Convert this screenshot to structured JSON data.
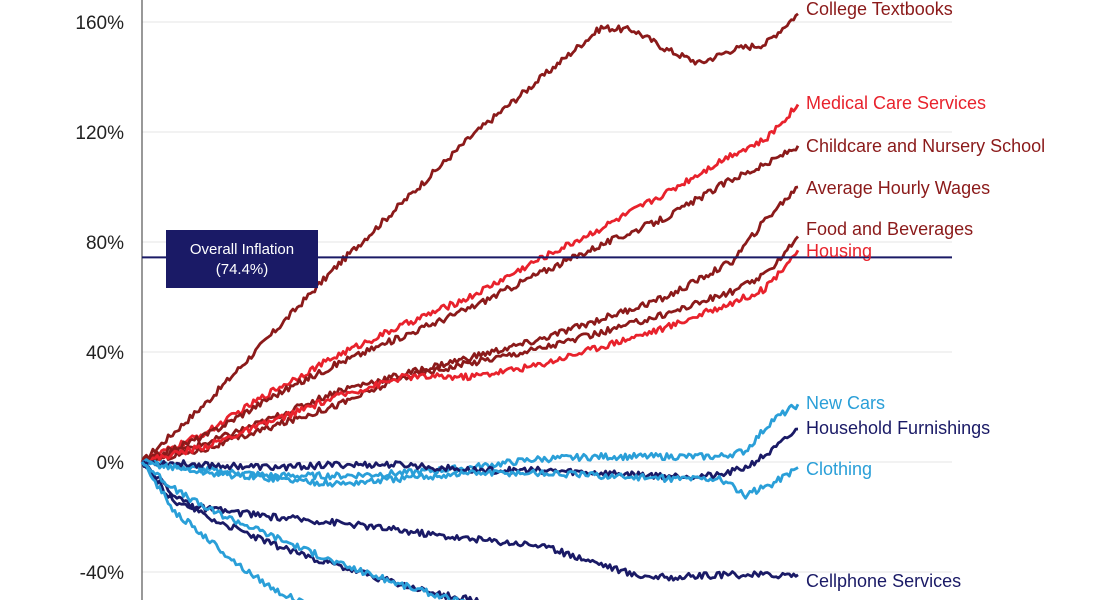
{
  "chart_data": {
    "type": "line",
    "ylim": [
      -50,
      170
    ],
    "yticks": [
      "160%",
      "120%",
      "80%",
      "40%",
      "0%",
      "-40%"
    ],
    "ytick_values": [
      160,
      120,
      80,
      40,
      0,
      -40
    ],
    "x_range": [
      0,
      100
    ],
    "grid": true,
    "annotation": {
      "line1": "Overall Inflation",
      "line2": "(74.4%)",
      "value": 74.4,
      "color": "#1a1a66"
    },
    "series": [
      {
        "name": "College Textbooks",
        "color": "#8b1a1a",
        "x": [
          0,
          10,
          20,
          30,
          40,
          50,
          60,
          70,
          75,
          80,
          85,
          90,
          95,
          100
        ],
        "values": [
          0,
          22,
          47,
          72,
          95,
          118,
          138,
          158,
          157,
          150,
          145,
          150,
          152,
          163
        ]
      },
      {
        "name": "Medical Care Services",
        "color": "#e8222c",
        "x": [
          0,
          10,
          20,
          30,
          40,
          50,
          60,
          70,
          80,
          90,
          95,
          100
        ],
        "values": [
          0,
          11,
          26,
          39,
          50,
          60,
          73,
          85,
          98,
          112,
          117,
          130
        ]
      },
      {
        "name": "Childcare and Nursery School",
        "color": "#8b1a1a",
        "x": [
          0,
          10,
          20,
          30,
          40,
          50,
          60,
          70,
          80,
          90,
          95,
          100
        ],
        "values": [
          0,
          10,
          24,
          36,
          46,
          56,
          68,
          79,
          89,
          103,
          108,
          115
        ]
      },
      {
        "name": "Average Hourly Wages",
        "color": "#8b1a1a",
        "x": [
          0,
          10,
          20,
          30,
          40,
          50,
          60,
          70,
          80,
          90,
          95,
          100
        ],
        "values": [
          0,
          7,
          16,
          26,
          32,
          38,
          44,
          52,
          60,
          73,
          88,
          100
        ]
      },
      {
        "name": "Food and Beverages",
        "color": "#8b1a1a",
        "x": [
          0,
          10,
          20,
          30,
          40,
          50,
          60,
          70,
          80,
          90,
          95,
          100
        ],
        "values": [
          0,
          5,
          13,
          21,
          31,
          36,
          41,
          47,
          54,
          62,
          68,
          82
        ]
      },
      {
        "name": "Housing",
        "color": "#e8222c",
        "x": [
          0,
          10,
          20,
          30,
          40,
          50,
          60,
          70,
          80,
          90,
          95,
          100
        ],
        "values": [
          0,
          6,
          15,
          24,
          31,
          31,
          35,
          42,
          49,
          58,
          63,
          77
        ]
      },
      {
        "name": "New Cars",
        "color": "#2a9fd8",
        "x": [
          0,
          10,
          20,
          30,
          40,
          50,
          60,
          70,
          80,
          88,
          92,
          96,
          100
        ],
        "values": [
          0,
          -3,
          -5,
          -5,
          -4,
          -2,
          1,
          2,
          2,
          2,
          4,
          15,
          21
        ]
      },
      {
        "name": "Household Furnishings",
        "color": "#1a1a66",
        "x": [
          0,
          10,
          20,
          30,
          40,
          50,
          60,
          70,
          80,
          88,
          92,
          96,
          100
        ],
        "values": [
          0,
          -1,
          -2,
          -1,
          -1,
          -3,
          -3,
          -4,
          -5,
          -5,
          -2,
          4,
          12
        ]
      },
      {
        "name": "Clothing",
        "color": "#2a9fd8",
        "x": [
          0,
          10,
          20,
          30,
          40,
          50,
          60,
          70,
          80,
          88,
          92,
          96,
          100
        ],
        "values": [
          0,
          -4,
          -6,
          -8,
          -6,
          -4,
          -4,
          -5,
          -6,
          -6,
          -12,
          -8,
          -2
        ]
      },
      {
        "name": "Cellphone Services",
        "color": "#1a1a66",
        "x": [
          0,
          5,
          10,
          20,
          30,
          40,
          50,
          60,
          70,
          75,
          80,
          90,
          100
        ],
        "values": [
          0,
          -15,
          -17,
          -20,
          -22,
          -25,
          -28,
          -30,
          -37,
          -41,
          -42,
          -41,
          -41
        ]
      },
      {
        "name": "",
        "color": "#1a1a66",
        "x": [
          0,
          5,
          10,
          20,
          30,
          40,
          45,
          50,
          55,
          60
        ],
        "values": [
          0,
          -12,
          -20,
          -30,
          -38,
          -45,
          -48,
          -50,
          -53,
          -56
        ]
      },
      {
        "name": "",
        "color": "#2a9fd8",
        "x": [
          0,
          5,
          10,
          20,
          30,
          40,
          50,
          60
        ],
        "values": [
          0,
          -10,
          -17,
          -27,
          -37,
          -45,
          -52,
          -58
        ]
      },
      {
        "name": "",
        "color": "#2a9fd8",
        "x": [
          0,
          5,
          10,
          15,
          20,
          25,
          30
        ],
        "values": [
          0,
          -18,
          -28,
          -38,
          -46,
          -52,
          -58
        ]
      }
    ]
  }
}
